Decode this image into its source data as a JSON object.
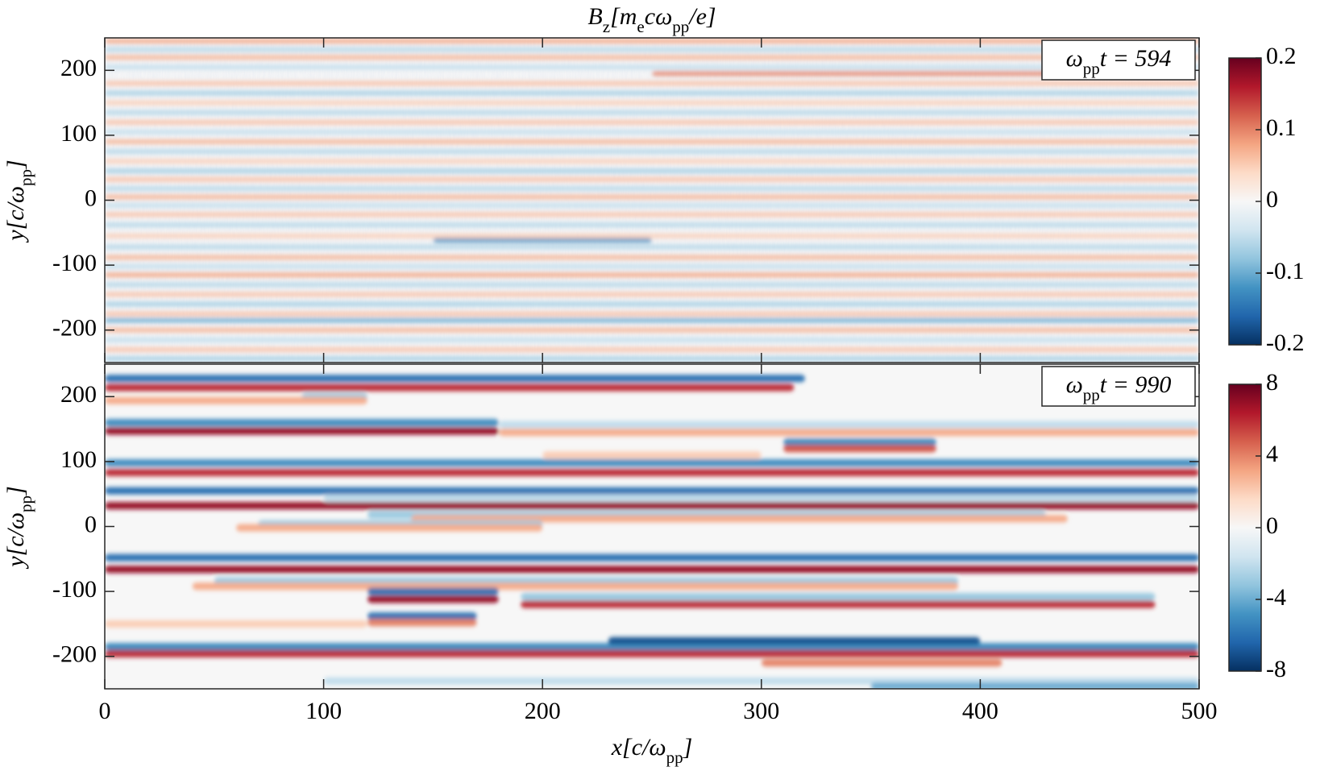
{
  "chart_data": [
    {
      "type": "heatmap",
      "title": [
        "B",
        {
          "sub": "z"
        },
        "[m",
        {
          "sub": "e"
        },
        "cω",
        {
          "sub": "pp"
        },
        "/e]"
      ],
      "ylabel": [
        "y[c/ω",
        {
          "sub": "pp"
        },
        "]"
      ],
      "annotation": [
        "ω",
        {
          "sub": "pp"
        },
        "t = 594"
      ],
      "xlim": [
        0,
        500
      ],
      "ylim": [
        -250,
        250
      ],
      "xticks": [
        0,
        100,
        200,
        300,
        400,
        500
      ],
      "show_xtick_labels": false,
      "yticks": [
        -200,
        -100,
        0,
        100,
        200
      ],
      "clim": [
        -0.2,
        0.2
      ],
      "cticks": [
        -0.2,
        -0.1,
        0,
        0.1,
        0.2
      ],
      "colormap": [
        "#053061",
        "#2166ac",
        "#4393c3",
        "#92c5de",
        "#d1e5f0",
        "#f7f7f7",
        "#fddbc7",
        "#f4a582",
        "#d6604d",
        "#b2182b",
        "#67001f"
      ],
      "stripes": [
        {
          "y": 245,
          "x": [
            0,
            500
          ],
          "value": 0.08
        },
        {
          "y": 232,
          "x": [
            0,
            500
          ],
          "value": -0.06
        },
        {
          "y": 220,
          "x": [
            0,
            500
          ],
          "value": 0.07
        },
        {
          "y": 205,
          "x": [
            0,
            500
          ],
          "value": -0.05
        },
        {
          "y": 195,
          "x": [
            250,
            450
          ],
          "value": 0.1
        },
        {
          "y": 180,
          "x": [
            0,
            500
          ],
          "value": 0.06
        },
        {
          "y": 165,
          "x": [
            0,
            500
          ],
          "value": -0.07
        },
        {
          "y": 150,
          "x": [
            0,
            500
          ],
          "value": 0.05
        },
        {
          "y": 135,
          "x": [
            0,
            500
          ],
          "value": -0.06
        },
        {
          "y": 120,
          "x": [
            0,
            500
          ],
          "value": 0.06
        },
        {
          "y": 105,
          "x": [
            0,
            500
          ],
          "value": -0.05
        },
        {
          "y": 90,
          "x": [
            0,
            500
          ],
          "value": 0.07
        },
        {
          "y": 75,
          "x": [
            0,
            500
          ],
          "value": -0.06
        },
        {
          "y": 60,
          "x": [
            0,
            500
          ],
          "value": 0.05
        },
        {
          "y": 45,
          "x": [
            0,
            500
          ],
          "value": -0.07
        },
        {
          "y": 32,
          "x": [
            0,
            500
          ],
          "value": 0.06
        },
        {
          "y": 18,
          "x": [
            0,
            500
          ],
          "value": -0.06
        },
        {
          "y": 5,
          "x": [
            0,
            500
          ],
          "value": 0.07
        },
        {
          "y": -8,
          "x": [
            0,
            500
          ],
          "value": -0.05
        },
        {
          "y": -22,
          "x": [
            0,
            500
          ],
          "value": 0.06
        },
        {
          "y": -38,
          "x": [
            0,
            500
          ],
          "value": -0.06
        },
        {
          "y": -55,
          "x": [
            0,
            500
          ],
          "value": 0.05
        },
        {
          "y": -62,
          "x": [
            150,
            250
          ],
          "value": -0.12
        },
        {
          "y": -72,
          "x": [
            0,
            500
          ],
          "value": -0.06
        },
        {
          "y": -88,
          "x": [
            0,
            500
          ],
          "value": 0.07
        },
        {
          "y": -102,
          "x": [
            0,
            500
          ],
          "value": -0.05
        },
        {
          "y": -115,
          "x": [
            0,
            500
          ],
          "value": 0.08
        },
        {
          "y": -130,
          "x": [
            0,
            500
          ],
          "value": -0.06
        },
        {
          "y": -145,
          "x": [
            0,
            500
          ],
          "value": 0.06
        },
        {
          "y": -160,
          "x": [
            0,
            500
          ],
          "value": -0.07
        },
        {
          "y": -175,
          "x": [
            0,
            500
          ],
          "value": 0.06
        },
        {
          "y": -185,
          "x": [
            0,
            500
          ],
          "value": -0.1
        },
        {
          "y": -200,
          "x": [
            0,
            500
          ],
          "value": 0.07
        },
        {
          "y": -215,
          "x": [
            0,
            500
          ],
          "value": -0.05
        },
        {
          "y": -230,
          "x": [
            0,
            500
          ],
          "value": 0.06
        },
        {
          "y": -244,
          "x": [
            0,
            500
          ],
          "value": -0.07
        }
      ]
    },
    {
      "type": "heatmap",
      "ylabel": [
        "y[c/ω",
        {
          "sub": "pp"
        },
        "]"
      ],
      "xlabel": [
        "x[c/ω",
        {
          "sub": "pp"
        },
        "]"
      ],
      "annotation": [
        "ω",
        {
          "sub": "pp"
        },
        "t = 990"
      ],
      "xlim": [
        0,
        500
      ],
      "ylim": [
        -250,
        250
      ],
      "xticks": [
        0,
        100,
        200,
        300,
        400,
        500
      ],
      "show_xtick_labels": true,
      "yticks": [
        -200,
        -100,
        0,
        100,
        200
      ],
      "clim": [
        -8,
        8
      ],
      "cticks": [
        -8,
        -4,
        0,
        4,
        8
      ],
      "colormap": [
        "#053061",
        "#2166ac",
        "#4393c3",
        "#92c5de",
        "#d1e5f0",
        "#f7f7f7",
        "#fddbc7",
        "#f4a582",
        "#d6604d",
        "#b2182b",
        "#67001f"
      ],
      "stripes": [
        {
          "y": 228,
          "x": [
            0,
            320
          ],
          "value": -6
        },
        {
          "y": 214,
          "x": [
            0,
            315
          ],
          "value": 6
        },
        {
          "y": 200,
          "x": [
            90,
            120
          ],
          "value": -3
        },
        {
          "y": 194,
          "x": [
            0,
            120
          ],
          "value": 3
        },
        {
          "y": 160,
          "x": [
            0,
            180
          ],
          "value": -5
        },
        {
          "y": 147,
          "x": [
            0,
            180
          ],
          "value": 7
        },
        {
          "y": 157,
          "x": [
            180,
            500
          ],
          "value": -2
        },
        {
          "y": 145,
          "x": [
            180,
            500
          ],
          "value": 3
        },
        {
          "y": 130,
          "x": [
            310,
            380
          ],
          "value": -5
        },
        {
          "y": 120,
          "x": [
            310,
            380
          ],
          "value": 5
        },
        {
          "y": 110,
          "x": [
            200,
            300
          ],
          "value": 2
        },
        {
          "y": 98,
          "x": [
            0,
            500
          ],
          "value": -5
        },
        {
          "y": 83,
          "x": [
            0,
            500
          ],
          "value": 6
        },
        {
          "y": 55,
          "x": [
            0,
            500
          ],
          "value": -6
        },
        {
          "y": 32,
          "x": [
            0,
            500
          ],
          "value": 7
        },
        {
          "y": 44,
          "x": [
            100,
            500
          ],
          "value": -2
        },
        {
          "y": 18,
          "x": [
            120,
            430
          ],
          "value": -3
        },
        {
          "y": 12,
          "x": [
            140,
            440
          ],
          "value": 3
        },
        {
          "y": 4,
          "x": [
            70,
            200
          ],
          "value": -3
        },
        {
          "y": -2,
          "x": [
            60,
            200
          ],
          "value": 3
        },
        {
          "y": -48,
          "x": [
            0,
            500
          ],
          "value": -6
        },
        {
          "y": -66,
          "x": [
            0,
            500
          ],
          "value": 7
        },
        {
          "y": -84,
          "x": [
            50,
            390
          ],
          "value": -3
        },
        {
          "y": -92,
          "x": [
            40,
            390
          ],
          "value": 3
        },
        {
          "y": -100,
          "x": [
            120,
            180
          ],
          "value": -6
        },
        {
          "y": -112,
          "x": [
            120,
            180
          ],
          "value": 7
        },
        {
          "y": -108,
          "x": [
            190,
            480
          ],
          "value": -3
        },
        {
          "y": -120,
          "x": [
            190,
            480
          ],
          "value": 6
        },
        {
          "y": -138,
          "x": [
            120,
            170
          ],
          "value": -6
        },
        {
          "y": -148,
          "x": [
            120,
            170
          ],
          "value": 4
        },
        {
          "y": -150,
          "x": [
            0,
            120
          ],
          "value": 2
        },
        {
          "y": -185,
          "x": [
            0,
            500
          ],
          "value": -5
        },
        {
          "y": -176,
          "x": [
            230,
            400
          ],
          "value": -7
        },
        {
          "y": -196,
          "x": [
            0,
            500
          ],
          "value": 6
        },
        {
          "y": -210,
          "x": [
            300,
            410
          ],
          "value": 4
        },
        {
          "y": -238,
          "x": [
            100,
            500
          ],
          "value": -2
        },
        {
          "y": -246,
          "x": [
            350,
            500
          ],
          "value": -4
        }
      ]
    }
  ]
}
